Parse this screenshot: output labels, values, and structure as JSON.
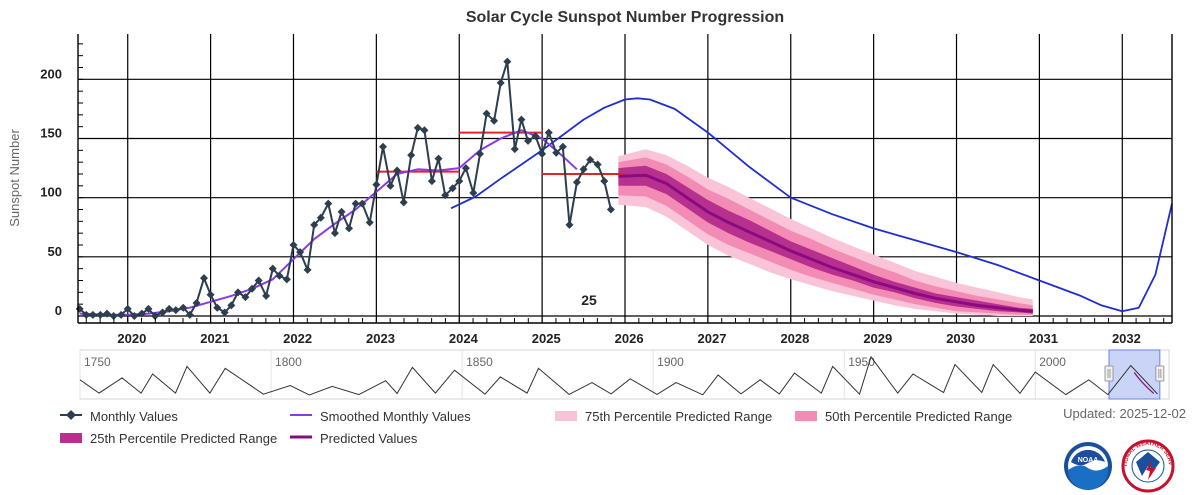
{
  "updated": "Updated: 2025-12-02",
  "navigator": {
    "years": [
      "1750",
      "1800",
      "1850",
      "1900",
      "1950",
      "2000"
    ],
    "range": [
      1750,
      2035
    ],
    "selection": [
      2019.3,
      2032.6
    ]
  },
  "logos": {
    "noaa": "NOAA",
    "nws": "NATIONAL WEATHER SERVICE"
  },
  "colors": {
    "monthly": "#2d3e4e",
    "smoothed": "#8a3ae6",
    "predicted": "#8b0a82",
    "p25": "#b8308e",
    "p50": "#f28cb4",
    "p75": "#f9c4d8",
    "cycle": "#1f2fcf",
    "red": "#e8202a"
  },
  "chart_data": {
    "type": "line",
    "title": "Solar Cycle Sunspot Number Progression",
    "ylabel": "Sunspot Number",
    "xlabel": "",
    "xlim": [
      2019.4,
      2032.6
    ],
    "ylim": [
      0,
      240
    ],
    "grid": true,
    "cycle_label": "25",
    "x_ticks": [
      "2020",
      "2021",
      "2022",
      "2023",
      "2024",
      "2025",
      "2026",
      "2027",
      "2028",
      "2029",
      "2030",
      "2031",
      "2032"
    ],
    "y_ticks": [
      "0",
      "50",
      "100",
      "150",
      "200"
    ],
    "legend": [
      {
        "key": "monthly",
        "label": "Monthly Values"
      },
      {
        "key": "smoothed",
        "label": "Smoothed Monthly Values"
      },
      {
        "key": "p75",
        "label": "75th Percentile Predicted Range"
      },
      {
        "key": "p50",
        "label": "50th Percentile Predicted Range"
      },
      {
        "key": "p25",
        "label": "25th Percentile Predicted Range"
      },
      {
        "key": "predicted",
        "label": "Predicted Values"
      }
    ],
    "monthly": {
      "x": [
        2019.42,
        2019.5,
        2019.58,
        2019.67,
        2019.75,
        2019.83,
        2019.92,
        2020.0,
        2020.08,
        2020.17,
        2020.25,
        2020.33,
        2020.42,
        2020.5,
        2020.58,
        2020.67,
        2020.75,
        2020.83,
        2020.92,
        2021.0,
        2021.08,
        2021.17,
        2021.25,
        2021.33,
        2021.42,
        2021.5,
        2021.58,
        2021.67,
        2021.75,
        2021.83,
        2021.92,
        2022.0,
        2022.08,
        2022.17,
        2022.25,
        2022.33,
        2022.42,
        2022.5,
        2022.58,
        2022.67,
        2022.75,
        2022.83,
        2022.92,
        2023.0,
        2023.08,
        2023.17,
        2023.25,
        2023.33,
        2023.42,
        2023.5,
        2023.58,
        2023.67,
        2023.75,
        2023.83,
        2023.92,
        2024.0,
        2024.08,
        2024.17,
        2024.25,
        2024.33,
        2024.42,
        2024.5,
        2024.58,
        2024.67,
        2024.75,
        2024.83,
        2024.92,
        2025.0,
        2025.08,
        2025.17,
        2025.25,
        2025.33,
        2025.42,
        2025.5,
        2025.58,
        2025.67,
        2025.75,
        2025.83
      ],
      "y": [
        6,
        1,
        1,
        1,
        2,
        0,
        1,
        6,
        0,
        2,
        6,
        0,
        3,
        6,
        5,
        7,
        1,
        11,
        32,
        18,
        7,
        3,
        9,
        20,
        16,
        23,
        30,
        17,
        40,
        34,
        31,
        60,
        54,
        39,
        77,
        83,
        95,
        70,
        88,
        74,
        95,
        95,
        79,
        111,
        143,
        110,
        123,
        96,
        136,
        159,
        157,
        114,
        133,
        102,
        108,
        114,
        125,
        104,
        137,
        171,
        165,
        197,
        215,
        141,
        166,
        148,
        152,
        137,
        155,
        138,
        143,
        77,
        113,
        124,
        132,
        128,
        114,
        90
      ]
    },
    "smoothed": {
      "x": [
        2019.42,
        2019.75,
        2020.0,
        2020.25,
        2020.5,
        2020.75,
        2021.0,
        2021.25,
        2021.5,
        2021.75,
        2022.0,
        2022.25,
        2022.5,
        2022.75,
        2023.0,
        2023.25,
        2023.5,
        2023.75,
        2024.0,
        2024.25,
        2024.5,
        2024.75,
        2025.0,
        2025.25,
        2025.42
      ],
      "y": [
        2,
        1,
        1,
        2,
        4,
        7,
        12,
        17,
        23,
        31,
        48,
        65,
        78,
        90,
        105,
        120,
        124,
        123,
        125,
        140,
        150,
        157,
        150,
        135,
        124
      ]
    },
    "cycle_curve": {
      "x": [
        2023.9,
        2024.2,
        2024.5,
        2024.75,
        2025.0,
        2025.25,
        2025.5,
        2025.75,
        2026.0,
        2026.15,
        2026.3,
        2026.6,
        2027.0,
        2027.5,
        2028.0,
        2028.5,
        2029.0,
        2029.5,
        2030.0,
        2030.5,
        2031.0,
        2031.5,
        2031.75,
        2032.0,
        2032.2,
        2032.4,
        2032.6
      ],
      "y": [
        91,
        101,
        116,
        128,
        140,
        153,
        166,
        176,
        183,
        184,
        183,
        175,
        155,
        126,
        100,
        86,
        74,
        64,
        54,
        43,
        30,
        17,
        9,
        4,
        7,
        35,
        95
      ]
    },
    "red_segments": [
      {
        "x": [
          2024.0,
          2025.0
        ],
        "y": [
          155,
          155
        ]
      },
      {
        "x": [
          2023.0,
          2024.0
        ],
        "y": [
          122,
          122
        ]
      },
      {
        "x": [
          2025.0,
          2026.0
        ],
        "y": [
          120,
          120
        ]
      }
    ],
    "predicted": {
      "x": [
        2025.92,
        2026.25,
        2026.5,
        2026.75,
        2027.0,
        2027.25,
        2027.5,
        2027.75,
        2028.0,
        2028.25,
        2028.5,
        2028.75,
        2029.0,
        2029.25,
        2029.5,
        2029.75,
        2030.0,
        2030.25,
        2030.5,
        2030.75,
        2030.92
      ],
      "y": [
        118,
        119,
        112,
        100,
        88,
        79,
        71,
        63,
        55,
        48,
        41,
        35,
        29,
        24,
        19,
        15,
        12,
        9,
        7,
        5,
        4
      ]
    },
    "p25_range": {
      "lower": [
        110,
        110,
        103,
        91,
        79,
        70,
        62,
        55,
        48,
        41,
        35,
        30,
        24,
        20,
        15,
        11,
        8,
        6,
        4,
        3,
        2
      ],
      "upper": [
        125,
        127,
        120,
        109,
        98,
        89,
        81,
        72,
        63,
        56,
        49,
        42,
        35,
        29,
        24,
        19,
        16,
        13,
        10,
        7,
        6
      ]
    },
    "p50_range": {
      "lower": [
        102,
        101,
        93,
        81,
        69,
        60,
        53,
        46,
        39,
        33,
        28,
        23,
        18,
        14,
        10,
        7,
        4,
        3,
        2,
        1,
        1
      ],
      "upper": [
        130,
        134,
        128,
        118,
        107,
        99,
        90,
        81,
        72,
        65,
        57,
        50,
        43,
        37,
        30,
        25,
        21,
        17,
        14,
        11,
        9
      ]
    },
    "p75_range": {
      "lower": [
        94,
        92,
        84,
        72,
        60,
        51,
        44,
        37,
        31,
        26,
        21,
        17,
        13,
        9,
        6,
        4,
        2,
        1,
        0,
        0,
        0
      ],
      "upper": [
        135,
        141,
        136,
        127,
        117,
        109,
        100,
        91,
        82,
        74,
        66,
        59,
        52,
        45,
        38,
        33,
        28,
        24,
        20,
        16,
        14
      ]
    },
    "navigator_series": {
      "x": [
        1750,
        1755,
        1761,
        1766,
        1769,
        1775,
        1778,
        1784,
        1788,
        1798,
        1805,
        1810,
        1816,
        1823,
        1830,
        1833,
        1837,
        1843,
        1848,
        1856,
        1860,
        1867,
        1870,
        1878,
        1884,
        1889,
        1894,
        1901,
        1906,
        1913,
        1917,
        1923,
        1928,
        1933,
        1937,
        1944,
        1947,
        1954,
        1957,
        1964,
        1968,
        1976,
        1979,
        1986,
        1989,
        1996,
        2000,
        2008,
        2014,
        2019,
        2025,
        2032
      ],
      "y": [
        80,
        10,
        90,
        10,
        110,
        10,
        150,
        10,
        140,
        4,
        50,
        0,
        45,
        2,
        75,
        8,
        145,
        10,
        130,
        4,
        95,
        10,
        140,
        3,
        65,
        6,
        85,
        3,
        65,
        1,
        105,
        6,
        80,
        6,
        115,
        10,
        150,
        4,
        200,
        10,
        110,
        13,
        160,
        13,
        160,
        9,
        120,
        2,
        80,
        2,
        155,
        5
      ]
    }
  }
}
